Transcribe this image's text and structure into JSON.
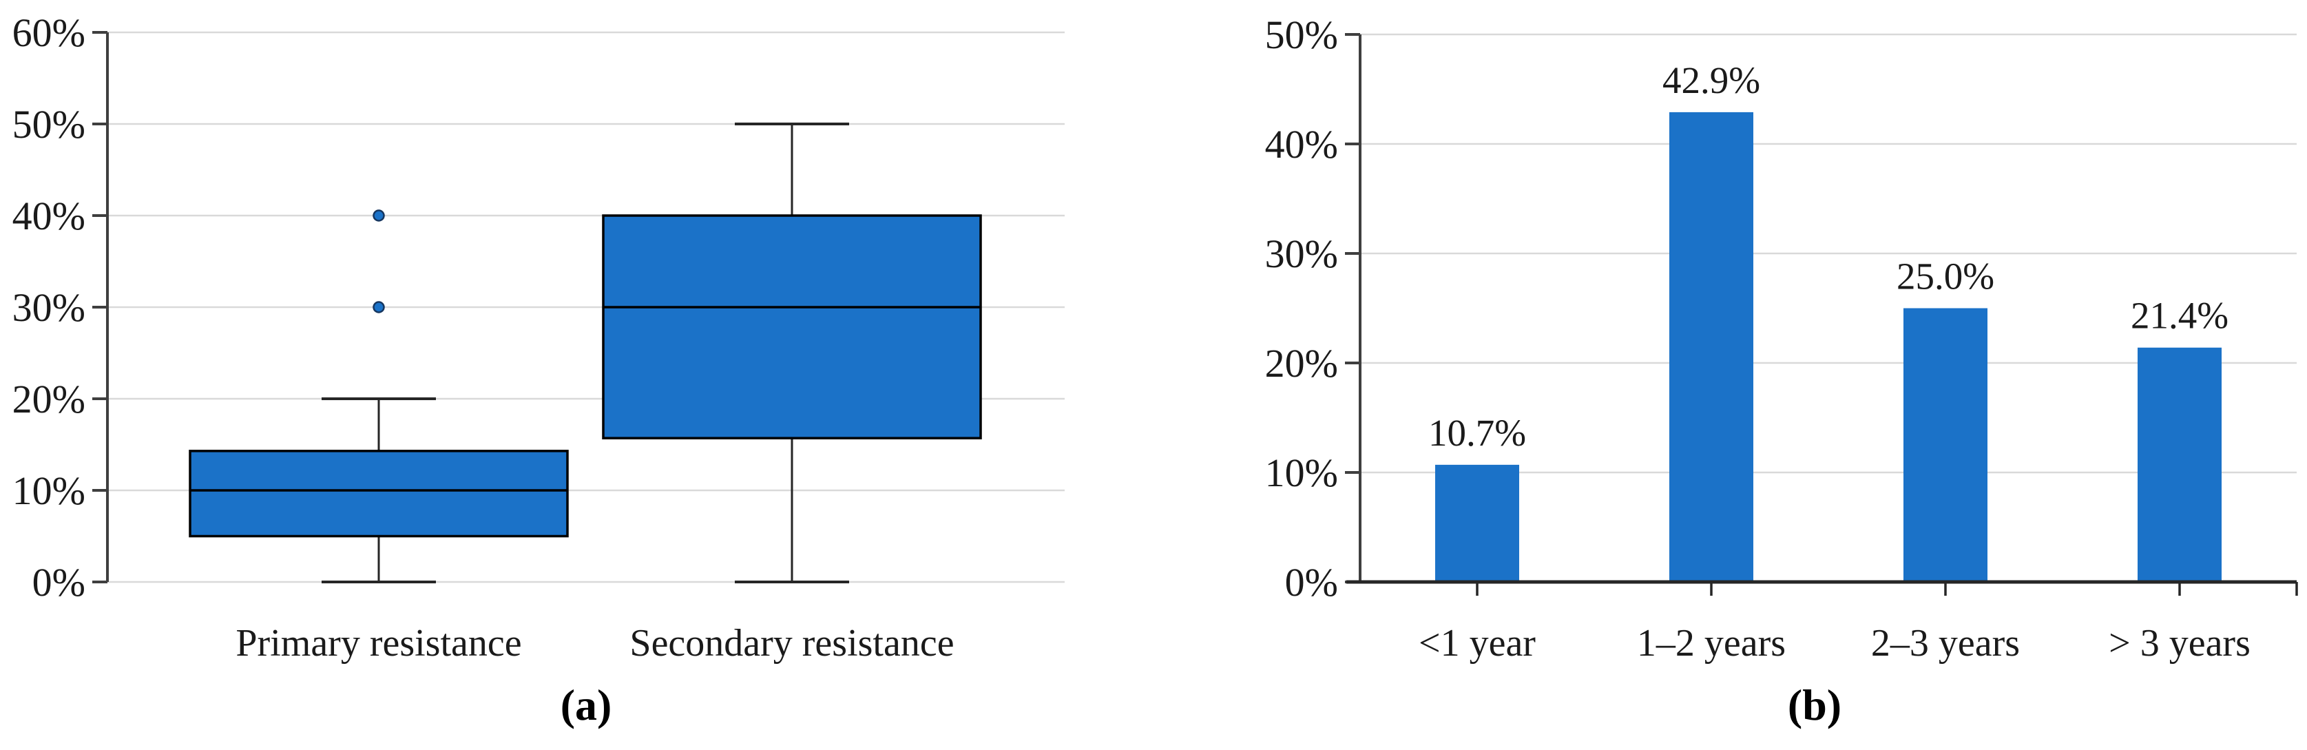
{
  "figure": {
    "background": "#FFFFFF",
    "panel_a_caption": "(a)",
    "panel_b_caption": "(b)"
  },
  "colors": {
    "fill_blue": "#1B72C8",
    "box_border": "#000000",
    "whisker": "#262626",
    "axis": "#3F3F3F",
    "gridline": "#D9D9D9",
    "text": "#1A1A1A",
    "outlier_stroke": "#16365F"
  },
  "chart_data": [
    {
      "type": "boxplot",
      "panel_label": "(a)",
      "categories": [
        "Primary resistance",
        "Secondary resistance"
      ],
      "series": [
        {
          "name": "Primary resistance",
          "min": 0,
          "q1": 5,
          "median": 10,
          "q3": 14.3,
          "max": 20,
          "outliers": [
            30,
            40
          ]
        },
        {
          "name": "Secondary resistance",
          "min": 0,
          "q1": 15.7,
          "median": 30,
          "q3": 40,
          "max": 50,
          "outliers": []
        }
      ],
      "ylim": [
        0,
        60
      ],
      "ytick_step": 10,
      "ytick_labels": [
        "0%",
        "10%",
        "20%",
        "30%",
        "40%",
        "50%",
        "60%"
      ],
      "grid": true,
      "legend": "none"
    },
    {
      "type": "bar",
      "panel_label": "(b)",
      "categories": [
        "<1 year",
        "1–2 years",
        "2–3 years",
        "> 3 years"
      ],
      "values": [
        10.7,
        42.9,
        25.0,
        21.4
      ],
      "value_labels": [
        "10.7%",
        "42.9%",
        "25.0%",
        "21.4%"
      ],
      "ylim": [
        0,
        50
      ],
      "ytick_step": 10,
      "ytick_labels": [
        "0%",
        "10%",
        "20%",
        "30%",
        "40%",
        "50%"
      ],
      "grid": true,
      "legend": "none"
    }
  ]
}
